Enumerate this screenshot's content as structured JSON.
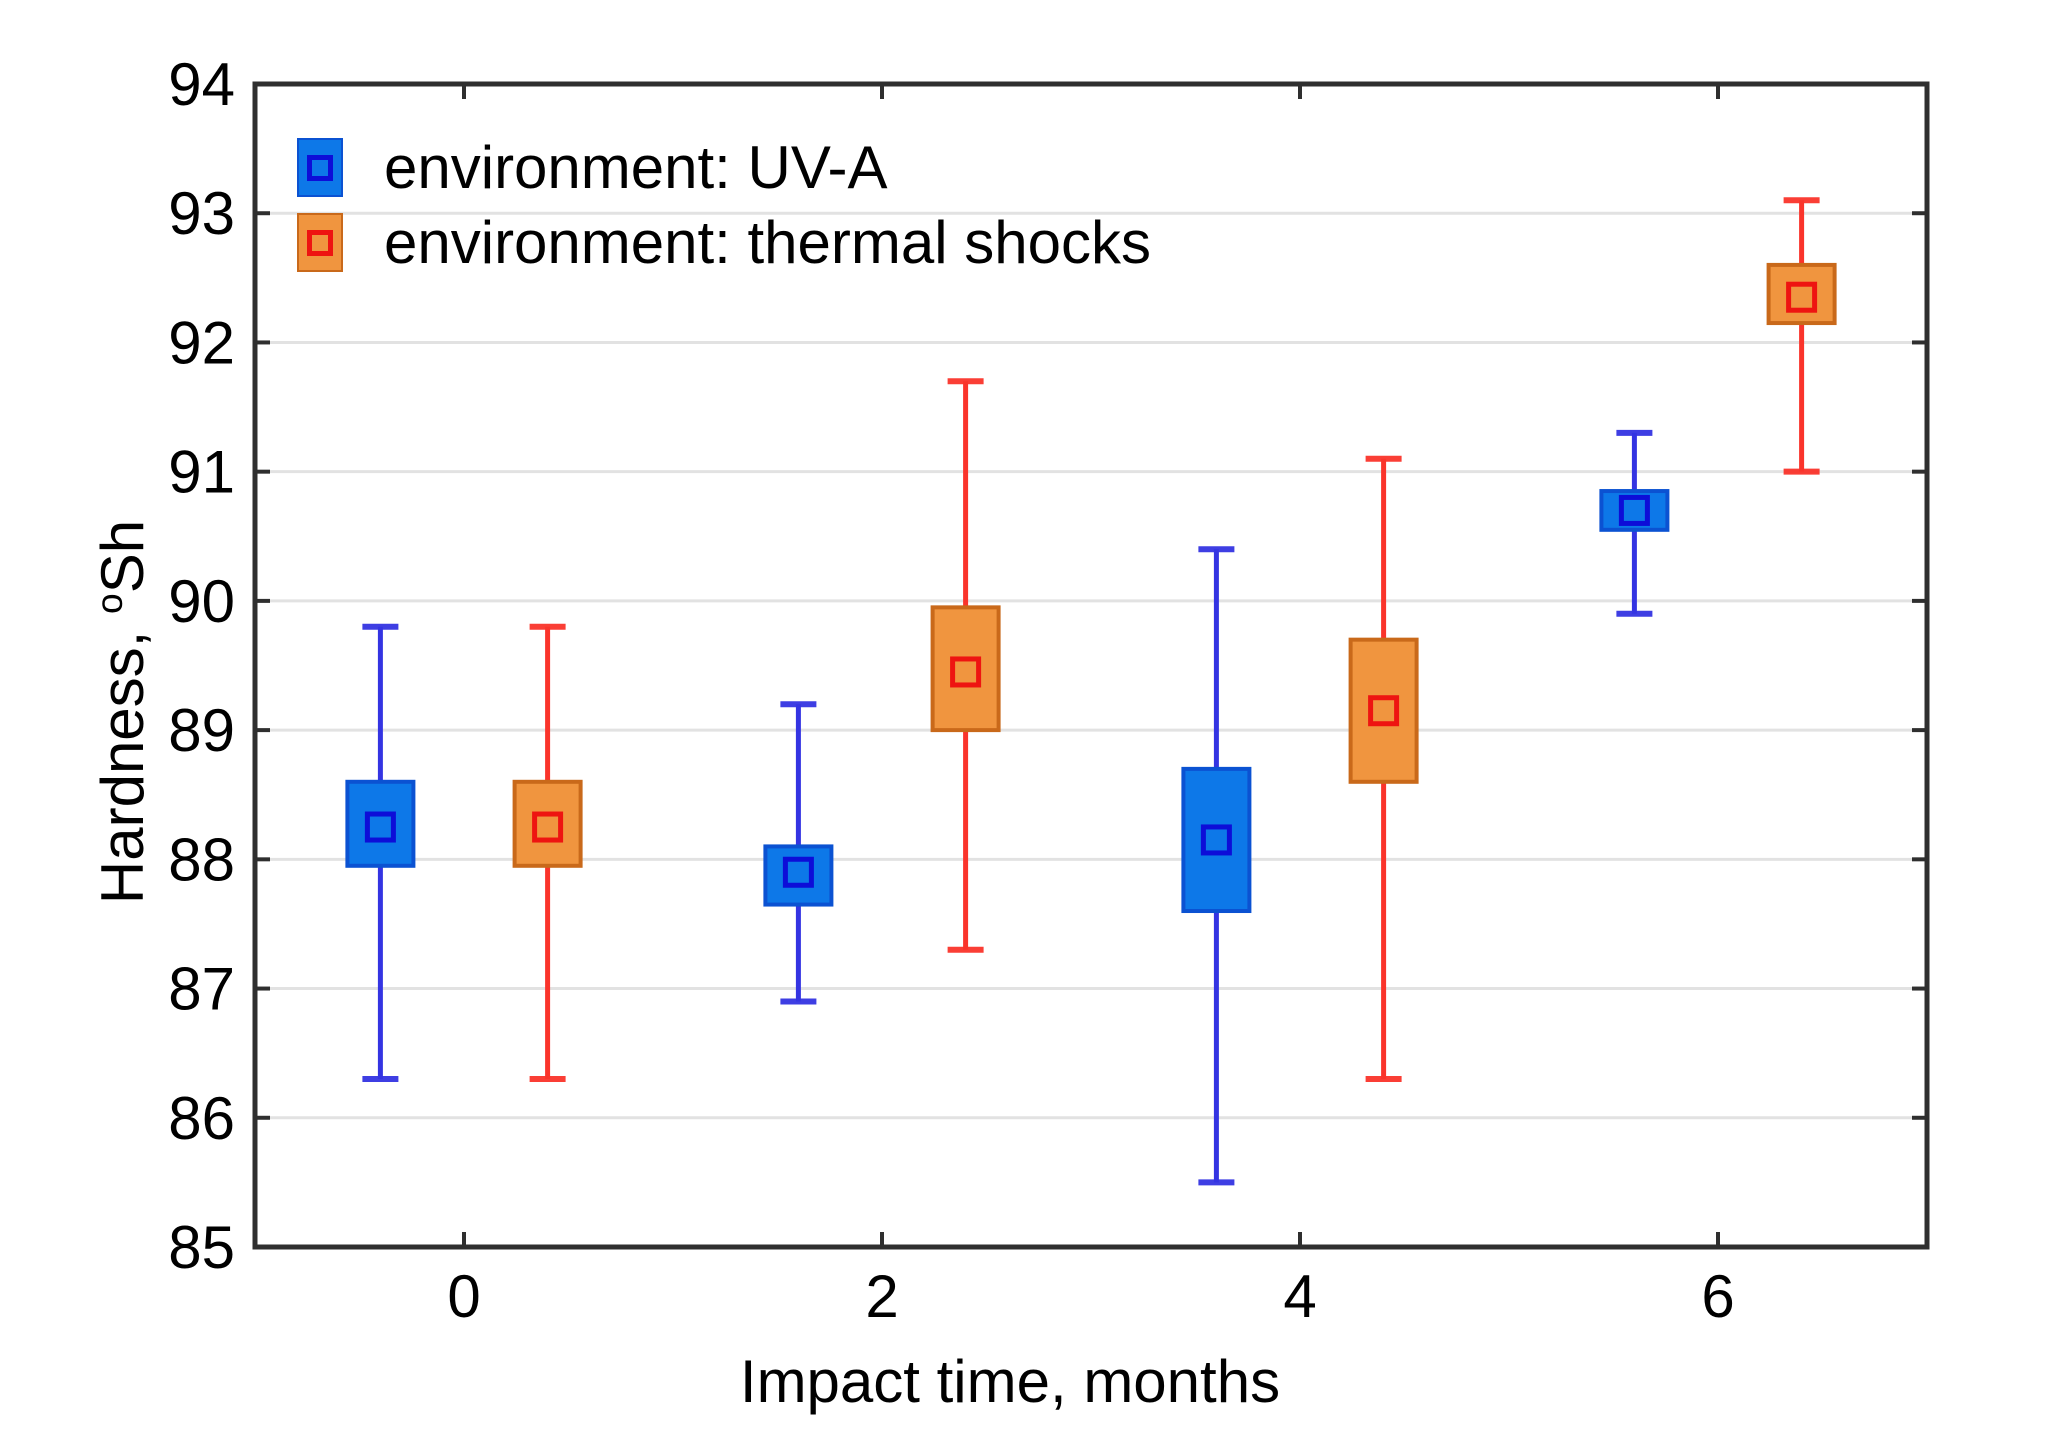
{
  "figure": {
    "background": "#ffffff"
  },
  "chart_data": {
    "type": "boxplot",
    "title": "",
    "xlabel": "Impact time, months",
    "ylabel": {
      "prefix": "Hardness, ",
      "sup": "o",
      "suffix": "Sh"
    },
    "x_ticks": [
      0,
      2,
      4,
      6
    ],
    "y_ticks": [
      85,
      86,
      87,
      88,
      89,
      90,
      91,
      92,
      93,
      94
    ],
    "xlim": [
      -1,
      7
    ],
    "ylim": [
      85,
      94
    ],
    "grid": "horizontal",
    "legend": {
      "position": "top-left",
      "entries": [
        "environment: UV-A",
        "environment: thermal shocks"
      ]
    },
    "colors": {
      "grid": "#e2e2e2",
      "frame": "#2f2f2f",
      "text": "#000000"
    },
    "series": [
      {
        "key": "uv-a",
        "name": "environment: UV-A",
        "x_offset": -0.4,
        "color_fill": "#0d78e8",
        "color_border": "#0b52d2",
        "color_whisker": "#3434e2",
        "color_marker": "#0d0dd8",
        "points": [
          {
            "x": 0,
            "mean": 88.25,
            "box_low": 87.95,
            "box_high": 88.6,
            "whisker_low": 86.3,
            "whisker_high": 89.8
          },
          {
            "x": 2,
            "mean": 87.9,
            "box_low": 87.65,
            "box_high": 88.1,
            "whisker_low": 86.9,
            "whisker_high": 89.2
          },
          {
            "x": 4,
            "mean": 88.15,
            "box_low": 87.6,
            "box_high": 88.7,
            "whisker_low": 85.5,
            "whisker_high": 90.4
          },
          {
            "x": 6,
            "mean": 90.7,
            "box_low": 90.55,
            "box_high": 90.85,
            "whisker_low": 89.9,
            "whisker_high": 91.3
          }
        ]
      },
      {
        "key": "thermal-shocks",
        "name": "environment: thermal shocks",
        "x_offset": 0.4,
        "color_fill": "#f0953f",
        "color_border": "#c9691a",
        "color_whisker": "#fa342b",
        "color_marker": "#ee1411",
        "points": [
          {
            "x": 0,
            "mean": 88.25,
            "box_low": 87.95,
            "box_high": 88.6,
            "whisker_low": 86.3,
            "whisker_high": 89.8
          },
          {
            "x": 2,
            "mean": 89.45,
            "box_low": 89.0,
            "box_high": 89.95,
            "whisker_low": 87.3,
            "whisker_high": 91.7
          },
          {
            "x": 4,
            "mean": 89.15,
            "box_low": 88.6,
            "box_high": 89.7,
            "whisker_low": 86.3,
            "whisker_high": 91.1
          },
          {
            "x": 6,
            "mean": 92.35,
            "box_low": 92.15,
            "box_high": 92.6,
            "whisker_low": 91.0,
            "whisker_high": 93.1
          }
        ]
      }
    ]
  }
}
